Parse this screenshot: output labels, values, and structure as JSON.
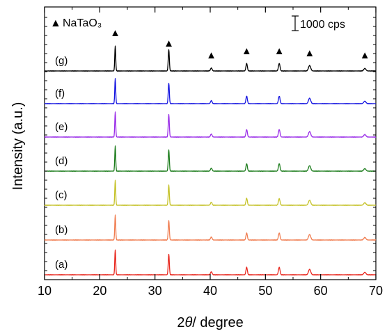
{
  "chart_data": {
    "type": "line",
    "xlabel": "2θ / degree",
    "xlabel_prefix": "2",
    "xlabel_theta": "θ",
    "xlabel_suffix": "/ degree",
    "ylabel": "Intensity (a.u.)",
    "xlim": [
      10,
      70
    ],
    "x_ticks": [
      10,
      20,
      30,
      40,
      50,
      60,
      70
    ],
    "x_minor_step": 5,
    "y_ticks_labeled": false,
    "grid": false,
    "legend": {
      "placement": "top-left",
      "marker": "▲",
      "label": "NaTaO₃"
    },
    "scale_bar": {
      "placement": "top-right",
      "label": "1000 cps"
    },
    "peak_marker": "▲",
    "peaks_2theta": [
      22.8,
      32.5,
      40.2,
      46.6,
      52.5,
      58.0,
      68.0
    ],
    "series": [
      {
        "name": "(a)",
        "color": "#e8281f",
        "peak_heights": [
          1.0,
          0.82,
          0.12,
          0.3,
          0.3,
          0.22,
          0.1
        ]
      },
      {
        "name": "(b)",
        "color": "#f07e52",
        "peak_heights": [
          1.0,
          0.78,
          0.12,
          0.28,
          0.28,
          0.22,
          0.1
        ]
      },
      {
        "name": "(c)",
        "color": "#c5c229",
        "peak_heights": [
          1.0,
          0.8,
          0.12,
          0.28,
          0.26,
          0.2,
          0.1
        ]
      },
      {
        "name": "(d)",
        "color": "#1e7d1e",
        "peak_heights": [
          1.0,
          0.85,
          0.12,
          0.3,
          0.3,
          0.22,
          0.1
        ]
      },
      {
        "name": "(e)",
        "color": "#9b30e8",
        "peak_heights": [
          1.0,
          0.9,
          0.12,
          0.3,
          0.3,
          0.22,
          0.1
        ]
      },
      {
        "name": "(f)",
        "color": "#1515e0",
        "peak_heights": [
          1.0,
          0.82,
          0.12,
          0.3,
          0.3,
          0.22,
          0.1
        ]
      },
      {
        "name": "(g)",
        "color": "#000000",
        "peak_heights": [
          1.0,
          0.85,
          0.12,
          0.3,
          0.3,
          0.22,
          0.1
        ]
      }
    ]
  }
}
